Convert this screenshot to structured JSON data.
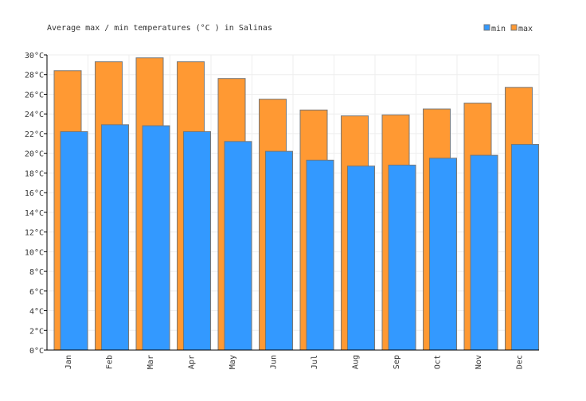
{
  "chart_data": {
    "type": "bar",
    "title": "Average max / min temperatures (°C ) in Salinas",
    "categories": [
      "Jan",
      "Feb",
      "Mar",
      "Apr",
      "May",
      "Jun",
      "Jul",
      "Aug",
      "Sep",
      "Oct",
      "Nov",
      "Dec"
    ],
    "series": [
      {
        "name": "min",
        "color": "#3399ff",
        "values": [
          22.2,
          22.9,
          22.8,
          22.2,
          21.2,
          20.2,
          19.3,
          18.7,
          18.8,
          19.5,
          19.8,
          20.9
        ]
      },
      {
        "name": "max",
        "color": "#ff9933",
        "values": [
          28.4,
          29.3,
          29.7,
          29.3,
          27.6,
          25.5,
          24.4,
          23.8,
          23.9,
          24.5,
          25.1,
          26.7
        ]
      }
    ],
    "ylim": [
      0,
      30
    ],
    "yticks": [
      "0°C",
      "2°C",
      "4°C",
      "6°C",
      "8°C",
      "10°C",
      "12°C",
      "14°C",
      "16°C",
      "18°C",
      "20°C",
      "22°C",
      "24°C",
      "26°C",
      "28°C",
      "30°C"
    ],
    "grid": true,
    "legend": "top-right"
  }
}
